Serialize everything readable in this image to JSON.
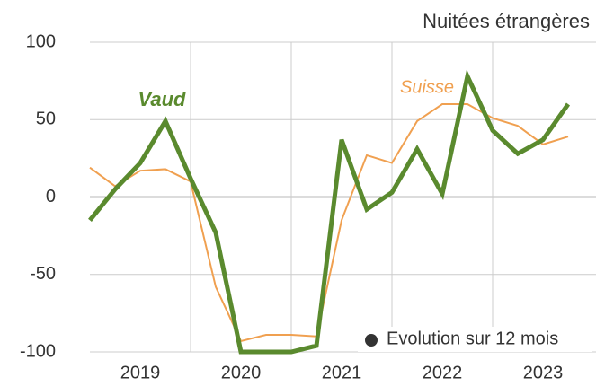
{
  "chart_data": {
    "type": "line",
    "title": "Nuitées étrangères",
    "legend_label": "Evolution sur 12 mois",
    "x": [
      2019,
      2019.25,
      2019.5,
      2019.75,
      2020,
      2020.25,
      2020.5,
      2020.75,
      2021,
      2021.25,
      2021.5,
      2021.75,
      2022,
      2022.25,
      2022.5,
      2022.75,
      2023,
      2023.25,
      2023.5,
      2023.75
    ],
    "series": [
      {
        "name": "Suisse",
        "color": "#f0a050",
        "width": 2,
        "values": [
          19,
          7,
          17,
          18,
          10,
          -58,
          -93,
          -89,
          -89,
          -90,
          -15,
          27,
          22,
          49,
          60,
          60,
          51,
          46,
          34,
          39
        ]
      },
      {
        "name": "Vaud",
        "color": "#5a8a2e",
        "width": 5,
        "values": [
          -15,
          5,
          22,
          49,
          12,
          -23,
          -100,
          -100,
          -100,
          -96,
          37,
          -8,
          3,
          31,
          2,
          78,
          43,
          28,
          37,
          60
        ]
      }
    ],
    "xlim": [
      2019,
      2024
    ],
    "xticks": [
      {
        "value": 2019.5,
        "label": "2019"
      },
      {
        "value": 2020.5,
        "label": "2020"
      },
      {
        "value": 2021.5,
        "label": "2021"
      },
      {
        "value": 2022.5,
        "label": "2022"
      },
      {
        "value": 2023.5,
        "label": "2023"
      }
    ],
    "xgrid": [
      2020,
      2021,
      2022,
      2023
    ],
    "ylim": [
      -100,
      100
    ],
    "yticks": [
      100,
      50,
      0,
      -50,
      -100
    ],
    "grid": true
  }
}
